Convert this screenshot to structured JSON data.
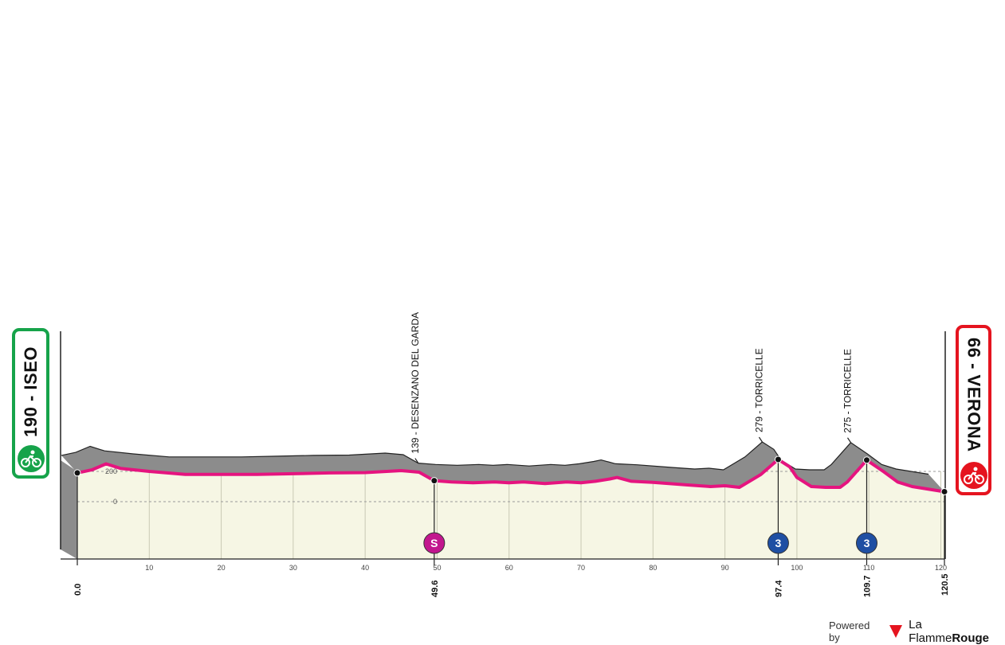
{
  "chart_data": {
    "type": "area",
    "title": "",
    "xlabel": "",
    "ylabel": "",
    "xlim": [
      0,
      120.5
    ],
    "x_ticks": [
      10,
      20,
      30,
      40,
      50,
      60,
      70,
      80,
      90,
      100,
      110,
      120
    ],
    "y_gridlines": [
      {
        "value": 0,
        "label": "0"
      },
      {
        "value": 200,
        "label": "200"
      }
    ],
    "elevation": {
      "x": [
        0,
        2,
        4,
        6,
        10,
        15,
        20,
        25,
        30,
        35,
        40,
        45,
        47.5,
        49.6,
        52,
        55,
        58,
        60,
        62,
        65,
        68,
        70,
        72,
        74,
        75,
        77,
        80,
        85,
        88,
        90,
        92,
        95,
        97.4,
        99,
        100,
        102,
        104,
        106,
        107,
        109.7,
        112,
        114,
        116,
        118,
        120.5
      ],
      "meters": [
        190,
        210,
        250,
        220,
        200,
        180,
        180,
        180,
        185,
        190,
        192,
        205,
        195,
        139,
        130,
        125,
        130,
        125,
        130,
        120,
        130,
        125,
        135,
        150,
        160,
        135,
        128,
        110,
        100,
        105,
        95,
        180,
        279,
        230,
        160,
        100,
        95,
        95,
        130,
        275,
        200,
        130,
        100,
        85,
        66
      ]
    },
    "start": {
      "km": "0.0",
      "label": "190 - ISEO"
    },
    "finish": {
      "km": "120.5",
      "label": "66 - VERONA"
    },
    "waypoints": [
      {
        "km": "49.6",
        "x": 49.6,
        "label": "139 - DESENZANO DEL GARDA",
        "marker": "S",
        "marker_color": "#c2168e"
      },
      {
        "km": "97.4",
        "x": 97.4,
        "label": "279 - TORRICELLE",
        "marker": "3",
        "marker_color": "#1f4fa3"
      },
      {
        "km": "109.7",
        "x": 109.7,
        "label": "275 - TORRICELLE",
        "marker": "3",
        "marker_color": "#1f4fa3"
      }
    ],
    "colors": {
      "route_line": "#e5147f",
      "terrain": "#8c8c8c",
      "profile_fill": "#f6f6e4",
      "start_badge": "#16a34a",
      "finish_badge": "#e5141f"
    }
  },
  "footer": {
    "powered_by": "Powered by",
    "brand_regular": "La Flamme",
    "brand_bold": "Rouge"
  }
}
